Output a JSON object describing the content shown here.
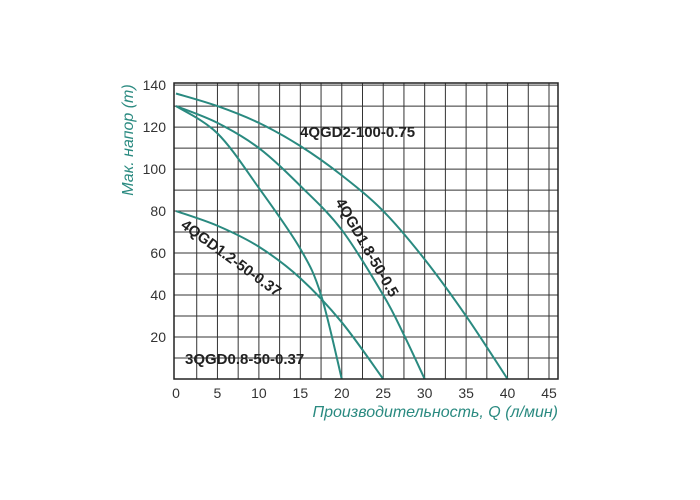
{
  "chart_data": {
    "type": "line",
    "title": "",
    "xlabel": "Производительность, Q (л/мин)",
    "ylabel": "Мак. напор (m)",
    "xlim": [
      0,
      46
    ],
    "ylim": [
      0,
      141
    ],
    "xticks": [
      0,
      5,
      10,
      15,
      20,
      25,
      30,
      35,
      40,
      45
    ],
    "yticks": [
      20,
      40,
      60,
      80,
      100,
      120,
      140
    ],
    "grid": true,
    "grid_x_step": 2.5,
    "grid_y_step": 10,
    "line_color": "#2a8a80",
    "series": [
      {
        "name": "4QGD2-100-0.75",
        "x": [
          0,
          5,
          10,
          15,
          20,
          25,
          30,
          35,
          40
        ],
        "y": [
          136,
          130,
          122,
          111,
          97,
          80,
          57,
          30,
          0
        ]
      },
      {
        "name": "4QGD1.8-50-0.5",
        "x": [
          0,
          5,
          10,
          15,
          20,
          25,
          27.5,
          30
        ],
        "y": [
          130,
          122,
          110,
          92,
          71,
          40,
          21,
          0
        ]
      },
      {
        "name": "3QGD0.8-50-0.37",
        "x": [
          0,
          5,
          10,
          15,
          17.5,
          20
        ],
        "y": [
          130,
          117,
          91,
          62,
          40,
          0
        ]
      },
      {
        "name": "4QGD1.2-50-0.37",
        "x": [
          0,
          5,
          10,
          15,
          20,
          25
        ],
        "y": [
          80,
          73,
          63,
          48,
          27,
          0
        ]
      }
    ]
  }
}
